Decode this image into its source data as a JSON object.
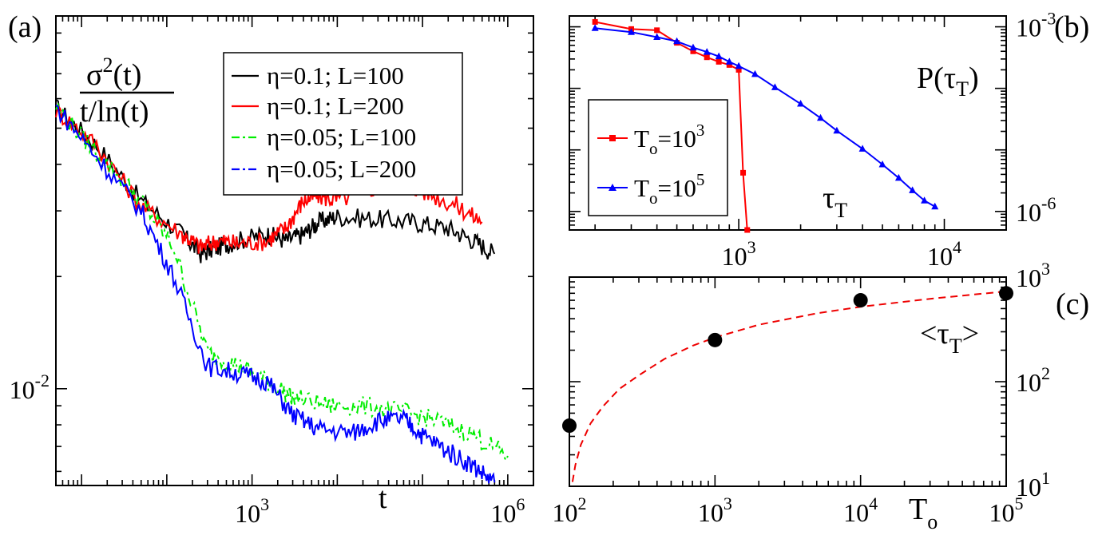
{
  "colors": {
    "black": "#000000",
    "red": "#ff0000",
    "green": "#00ee00",
    "blue": "#0000ff",
    "fit": "#ee0000"
  },
  "chart_data": [
    {
      "panel": "a",
      "panel_label": "(a)",
      "type": "line",
      "scale": "log-log",
      "xlim": [
        5,
        2000000
      ],
      "ylim": [
        0.0055,
        0.1
      ],
      "x_ticks": [
        {
          "value": 1000,
          "base": "10",
          "exp": "3"
        },
        {
          "value": 1000000,
          "base": "10",
          "exp": "6"
        }
      ],
      "y_ticks": [
        {
          "value": 0.01,
          "base": "10",
          "exp": "-2"
        }
      ],
      "xlabel": "t",
      "ylabel": {
        "numerator": "σ",
        "num_sup": "2",
        "num_arg": "(t)",
        "denominator": "t/ln(t)"
      },
      "legend_position": "top-right",
      "series": [
        {
          "name": "η=0.1; L=100",
          "color": "#000000",
          "dash": "solid",
          "x": [
            5,
            15,
            50,
            150,
            250,
            400,
            700,
            1500,
            2500,
            4000,
            6000,
            10000,
            30000,
            80000,
            200000,
            400000,
            700000
          ],
          "y": [
            0.057,
            0.045,
            0.032,
            0.026,
            0.023,
            0.024,
            0.025,
            0.026,
            0.025,
            0.026,
            0.028,
            0.029,
            0.0285,
            0.028,
            0.027,
            0.025,
            0.023
          ]
        },
        {
          "name": "η=0.1; L=200",
          "color": "#ff0000",
          "dash": "solid",
          "x": [
            5,
            15,
            50,
            150,
            250,
            400,
            700,
            1500,
            2500,
            4000,
            6000,
            10000,
            30000,
            60000,
            100000,
            250000,
            500000
          ],
          "y": [
            0.056,
            0.045,
            0.031,
            0.026,
            0.024,
            0.025,
            0.0245,
            0.025,
            0.027,
            0.032,
            0.033,
            0.032,
            0.035,
            0.036,
            0.034,
            0.031,
            0.028
          ]
        },
        {
          "name": "η=0.05; L=100",
          "color": "#00ee00",
          "dash": "dashdot",
          "x": [
            5,
            15,
            50,
            120,
            300,
            700,
            1500,
            3000,
            8000,
            20000,
            60000,
            150000,
            400000,
            1000000
          ],
          "y": [
            0.057,
            0.043,
            0.032,
            0.024,
            0.0125,
            0.0115,
            0.0105,
            0.0095,
            0.009,
            0.009,
            0.0087,
            0.0082,
            0.0075,
            0.0066
          ]
        },
        {
          "name": "η=0.05; L=200",
          "color": "#0000ff",
          "dash": "dashed",
          "x": [
            5,
            15,
            50,
            120,
            300,
            700,
            1500,
            3000,
            6000,
            15000,
            30000,
            60000,
            100000,
            200000,
            400000,
            700000
          ],
          "y": [
            0.057,
            0.042,
            0.03,
            0.02,
            0.0115,
            0.011,
            0.0105,
            0.0085,
            0.0078,
            0.0076,
            0.0082,
            0.0083,
            0.0075,
            0.0068,
            0.0062,
            0.0056
          ]
        }
      ]
    },
    {
      "panel": "b",
      "panel_label": "(b)",
      "type": "line",
      "scale": "log-log",
      "xlim": [
        150,
        20000
      ],
      "ylim": [
        5e-07,
        0.0015
      ],
      "x_ticks": [
        {
          "value": 1000,
          "base": "10",
          "exp": "3"
        },
        {
          "value": 10000,
          "base": "10",
          "exp": "4"
        }
      ],
      "y_ticks": [
        {
          "value": 0.001,
          "base": "10",
          "exp": "-3"
        },
        {
          "value": 1e-06,
          "base": "10",
          "exp": "-6"
        }
      ],
      "xlabel": {
        "base": "τ",
        "sub": "T"
      },
      "ylabel": {
        "base": "P(τ",
        "sub": "T",
        "close": ")"
      },
      "legend_position": "bottom-left",
      "series": [
        {
          "name": "To=10^3",
          "label_base": "T",
          "label_sub": "o",
          "label_rest": "=10",
          "label_sup": "3",
          "color": "#ff0000",
          "marker": "square",
          "x": [
            200,
            300,
            400,
            500,
            600,
            700,
            800,
            900,
            1000,
            1050,
            1100
          ],
          "y": [
            0.0012,
            0.00092,
            0.00088,
            0.00055,
            0.0004,
            0.00032,
            0.00027,
            0.00024,
            0.0002,
            4.25e-06,
            5e-07
          ]
        },
        {
          "name": "To=10^5",
          "label_base": "T",
          "label_sub": "o",
          "label_rest": "=10",
          "label_sup": "5",
          "color": "#0000ff",
          "marker": "triangle",
          "x": [
            200,
            300,
            400,
            500,
            600,
            700,
            800,
            900,
            1000,
            1200,
            1500,
            2000,
            2500,
            3000,
            4000,
            5000,
            6000,
            7000,
            8000,
            9000
          ],
          "y": [
            0.00095,
            0.00082,
            0.00068,
            0.00058,
            0.00046,
            0.00039,
            0.00033,
            0.00027,
            0.00023,
            0.00017,
            0.000104,
            5.6e-05,
            3.3e-05,
            2.05e-05,
            1.04e-05,
            5.8e-06,
            3.5e-06,
            2.2e-06,
            1.5e-06,
            1.2e-06
          ]
        }
      ]
    },
    {
      "panel": "c",
      "panel_label": "(c)",
      "type": "scatter",
      "scale": "log-log",
      "xlim": [
        100,
        100000
      ],
      "ylim": [
        10,
        1000
      ],
      "x_ticks": [
        {
          "value": 100,
          "base": "10",
          "exp": "2"
        },
        {
          "value": 1000,
          "base": "10",
          "exp": "3"
        },
        {
          "value": 10000,
          "base": "10",
          "exp": "4"
        },
        {
          "value": 100000,
          "base": "10",
          "exp": "5"
        }
      ],
      "y_ticks": [
        {
          "value": 10,
          "base": "10",
          "exp": "1"
        },
        {
          "value": 100,
          "base": "10",
          "exp": "2"
        },
        {
          "value": 1000,
          "base": "10",
          "exp": "3"
        }
      ],
      "xlabel": {
        "base": "T",
        "sub": "o"
      },
      "ylabel": {
        "open": "<τ",
        "sub": "T",
        "close": ">"
      },
      "points": {
        "x": [
          100,
          1000,
          10000,
          100000
        ],
        "y": [
          38,
          250,
          600,
          700
        ],
        "color": "#000000"
      },
      "fit": {
        "x": [
          105,
          110,
          120,
          140,
          170,
          220,
          300,
          450,
          700,
          1000,
          2000,
          5000,
          10000,
          30000,
          100000
        ],
        "y": [
          11,
          16,
          25,
          40,
          58,
          85,
          115,
          165,
          220,
          265,
          350,
          450,
          520,
          620,
          730
        ],
        "color": "#ee0000",
        "dash": "dashed"
      }
    }
  ]
}
